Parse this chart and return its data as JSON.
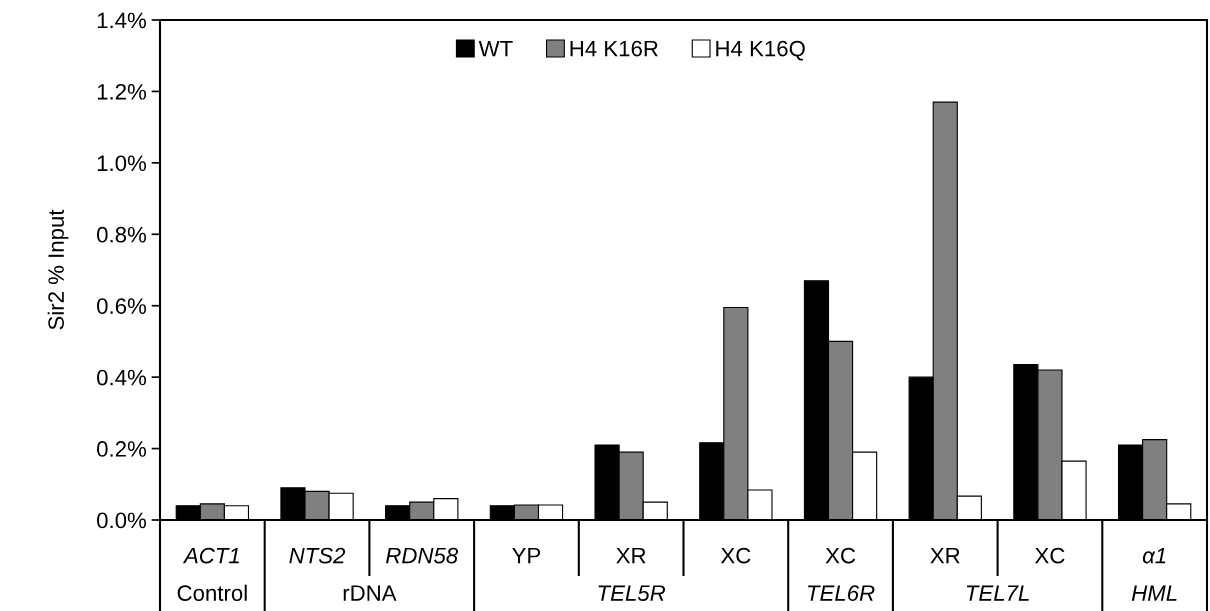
{
  "chart_data": {
    "type": "bar",
    "ylabel": "Sir2 % Input",
    "categories": [
      "ACT1",
      "NTS2",
      "RDN58",
      "YP",
      "XR",
      "XC",
      "XC",
      "XR",
      "XC",
      "α1"
    ],
    "series": [
      {
        "name": "WT",
        "color": "#000000",
        "values": [
          0.04,
          0.09,
          0.04,
          0.04,
          0.21,
          0.216,
          0.67,
          0.4,
          0.435,
          0.21
        ]
      },
      {
        "name": "H4 K16R",
        "color": "#808080",
        "values": [
          0.045,
          0.08,
          0.05,
          0.042,
          0.19,
          0.595,
          0.5,
          1.17,
          0.42,
          0.225
        ]
      },
      {
        "name": "H4 K16Q",
        "color": "#ffffff",
        "values": [
          0.04,
          0.075,
          0.06,
          0.042,
          0.05,
          0.084,
          0.19,
          0.067,
          0.165,
          0.045
        ]
      }
    ],
    "annotations": [
      "Control",
      "rDNA",
      "TEL5R",
      "TEL6R",
      "TEL7L",
      "HML"
    ],
    "ylim": [
      0,
      1.4
    ],
    "yticks": [
      {
        "value": 0,
        "label": "0.0%"
      },
      {
        "value": 0.2,
        "label": "0.2%"
      },
      {
        "value": 0.4,
        "label": "0.4%"
      },
      {
        "value": 0.6,
        "label": "0.6%"
      },
      {
        "value": 0.8,
        "label": "0.8%"
      },
      {
        "value": 1.0,
        "label": "1.0%"
      },
      {
        "value": 1.2,
        "label": "1.2%"
      },
      {
        "value": 1.4,
        "label": "1.4%"
      }
    ],
    "grid": false,
    "legend": "top"
  }
}
